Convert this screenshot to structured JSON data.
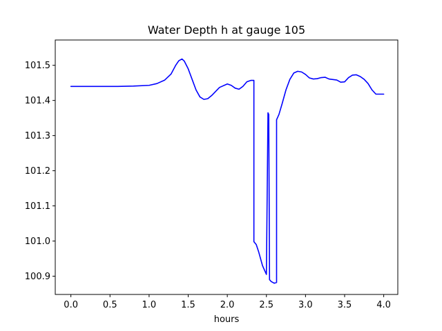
{
  "chart_data": {
    "type": "line",
    "title": "Water Depth h at gauge 105",
    "xlabel": "hours",
    "ylabel": "",
    "xlim": [
      -0.2,
      4.18
    ],
    "ylim": [
      100.848,
      101.572
    ],
    "xticks": [
      0.0,
      0.5,
      1.0,
      1.5,
      2.0,
      2.5,
      3.0,
      3.5,
      4.0
    ],
    "xtick_labels": [
      "0.0",
      "0.5",
      "1.0",
      "1.5",
      "2.0",
      "2.5",
      "3.0",
      "3.5",
      "4.0"
    ],
    "yticks": [
      100.9,
      101.0,
      101.1,
      101.2,
      101.3,
      101.4,
      101.5
    ],
    "ytick_labels": [
      "100.9",
      "101.0",
      "101.1",
      "101.2",
      "101.3",
      "101.4",
      "101.5"
    ],
    "grid": false,
    "series": [
      {
        "color": "#0000ff",
        "x": [
          0.0,
          0.3,
          0.6,
          0.8,
          1.0,
          1.1,
          1.2,
          1.28,
          1.34,
          1.38,
          1.42,
          1.45,
          1.5,
          1.55,
          1.6,
          1.65,
          1.7,
          1.75,
          1.8,
          1.9,
          2.0,
          2.05,
          2.1,
          2.15,
          2.2,
          2.25,
          2.3,
          2.34,
          2.34,
          2.37,
          2.4,
          2.45,
          2.5,
          2.52,
          2.53,
          2.54,
          2.56,
          2.6,
          2.63,
          2.63,
          2.66,
          2.7,
          2.75,
          2.8,
          2.85,
          2.9,
          2.95,
          3.0,
          3.05,
          3.1,
          3.15,
          3.2,
          3.25,
          3.3,
          3.4,
          3.45,
          3.5,
          3.55,
          3.6,
          3.65,
          3.7,
          3.75,
          3.8,
          3.85,
          3.9,
          3.95,
          4.0
        ],
        "y": [
          101.44,
          101.44,
          101.44,
          101.441,
          101.443,
          101.448,
          101.458,
          101.475,
          101.5,
          101.513,
          101.518,
          101.512,
          101.49,
          101.46,
          101.43,
          101.41,
          101.403,
          101.405,
          101.414,
          101.437,
          101.447,
          101.443,
          101.435,
          101.432,
          101.44,
          101.453,
          101.457,
          101.457,
          100.998,
          100.99,
          100.97,
          100.93,
          100.905,
          101.365,
          101.36,
          100.89,
          100.885,
          100.88,
          100.882,
          101.345,
          101.36,
          101.39,
          101.43,
          101.46,
          101.478,
          101.483,
          101.481,
          101.474,
          101.464,
          101.461,
          101.462,
          101.465,
          101.466,
          101.461,
          101.458,
          101.452,
          101.453,
          101.465,
          101.472,
          101.473,
          101.468,
          101.46,
          101.448,
          101.43,
          101.418,
          101.418,
          101.418
        ]
      }
    ]
  }
}
